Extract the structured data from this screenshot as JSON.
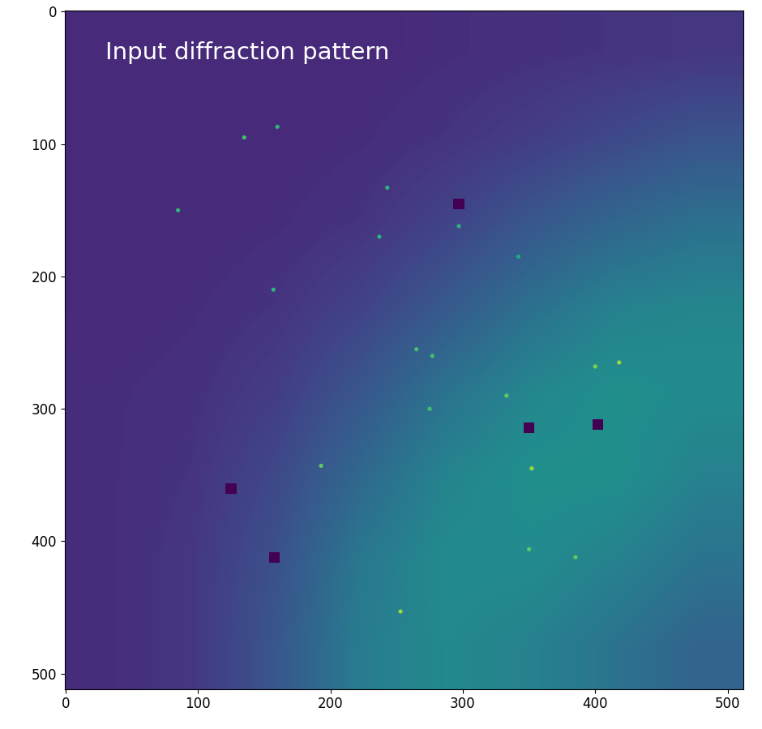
{
  "chart_data": {
    "type": "image",
    "annotation": "Input diffraction pattern",
    "xlim": [
      -0.5,
      511.5
    ],
    "ylim": [
      511.5,
      -0.5
    ],
    "xticks": [
      0,
      100,
      200,
      300,
      400,
      500
    ],
    "yticks": [
      0,
      100,
      200,
      300,
      400,
      500
    ],
    "clim": [
      0,
      1
    ],
    "cells": [
      [
        0.12,
        0.12,
        0.12,
        0.12,
        0.13,
        0.14,
        0.15,
        0.16
      ],
      [
        0.12,
        0.12,
        0.12,
        0.13,
        0.15,
        0.18,
        0.22,
        0.26
      ],
      [
        0.12,
        0.12,
        0.13,
        0.15,
        0.2,
        0.27,
        0.33,
        0.37
      ],
      [
        0.12,
        0.13,
        0.15,
        0.2,
        0.28,
        0.37,
        0.44,
        0.46
      ],
      [
        0.13,
        0.14,
        0.18,
        0.27,
        0.38,
        0.46,
        0.5,
        0.48
      ],
      [
        0.13,
        0.15,
        0.22,
        0.34,
        0.45,
        0.5,
        0.5,
        0.44
      ],
      [
        0.13,
        0.16,
        0.25,
        0.4,
        0.48,
        0.48,
        0.44,
        0.38
      ],
      [
        0.13,
        0.16,
        0.27,
        0.42,
        0.47,
        0.44,
        0.38,
        0.32
      ]
    ],
    "peaks": {
      "x": [
        135,
        160,
        85,
        243,
        237,
        297,
        342,
        157,
        265,
        277,
        275,
        333,
        400,
        418,
        352,
        193,
        350,
        385,
        253
      ],
      "y": [
        95,
        87,
        150,
        133,
        170,
        162,
        185,
        210,
        255,
        260,
        300,
        290,
        268,
        265,
        345,
        343,
        406,
        412,
        453
      ],
      "values": [
        0.7,
        0.65,
        0.65,
        0.65,
        0.65,
        0.65,
        0.6,
        0.65,
        0.7,
        0.7,
        0.7,
        0.75,
        0.8,
        0.85,
        0.85,
        0.75,
        0.75,
        0.75,
        0.85
      ]
    },
    "masks": {
      "x": [
        297,
        350,
        402,
        125,
        158
      ],
      "y": [
        145,
        314,
        312,
        360,
        412
      ]
    }
  }
}
